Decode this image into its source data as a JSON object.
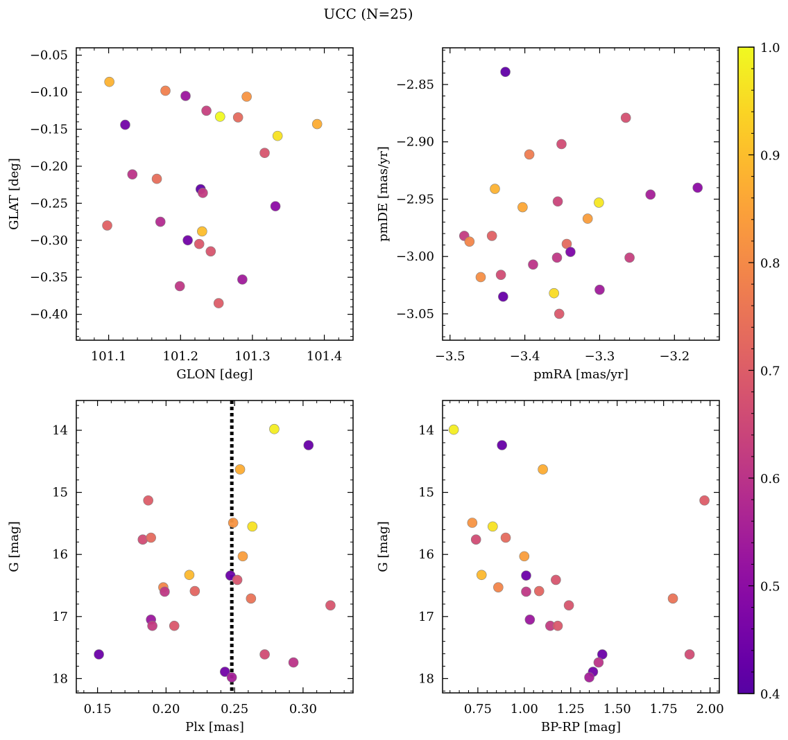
{
  "figure": {
    "suptitle": "UCC (N=25)",
    "colormap": "plasma",
    "colorbar": {
      "min": 0.4,
      "max": 1.0,
      "ticks": [
        0.4,
        0.5,
        0.6,
        0.7,
        0.8,
        0.9,
        1.0
      ],
      "tick_labels": [
        "0.4",
        "0.5",
        "0.6",
        "0.7",
        "0.8",
        "0.9",
        "1.0"
      ]
    }
  },
  "chart_data": [
    {
      "type": "scatter",
      "panel": "top-left",
      "xlabel": "GLON [deg]",
      "ylabel": "GLAT [deg]",
      "xlim": [
        101.055,
        101.44
      ],
      "ylim": [
        -0.435,
        -0.04
      ],
      "y_inverted": false,
      "xticks": [
        101.1,
        101.2,
        101.3,
        101.4
      ],
      "xtick_labels": [
        "101.1",
        "101.2",
        "101.3",
        "101.4"
      ],
      "yticks": [
        -0.05,
        -0.1,
        -0.15,
        -0.2,
        -0.25,
        -0.3,
        -0.35,
        -0.4
      ],
      "ytick_labels": [
        "−0.05",
        "−0.10",
        "−0.15",
        "−0.20",
        "−0.25",
        "−0.30",
        "−0.35",
        "−0.40"
      ],
      "points": [
        {
          "x": 101.101,
          "y": -0.086,
          "c": 0.88
        },
        {
          "x": 101.179,
          "y": -0.098,
          "c": 0.78
        },
        {
          "x": 101.207,
          "y": -0.105,
          "c": 0.53
        },
        {
          "x": 101.292,
          "y": -0.106,
          "c": 0.82
        },
        {
          "x": 101.236,
          "y": -0.125,
          "c": 0.63
        },
        {
          "x": 101.255,
          "y": -0.133,
          "c": 1.0
        },
        {
          "x": 101.28,
          "y": -0.134,
          "c": 0.73
        },
        {
          "x": 101.123,
          "y": -0.144,
          "c": 0.45
        },
        {
          "x": 101.39,
          "y": -0.143,
          "c": 0.87
        },
        {
          "x": 101.335,
          "y": -0.159,
          "c": 0.96
        },
        {
          "x": 101.317,
          "y": -0.182,
          "c": 0.68
        },
        {
          "x": 101.133,
          "y": -0.211,
          "c": 0.6
        },
        {
          "x": 101.167,
          "y": -0.217,
          "c": 0.74
        },
        {
          "x": 101.228,
          "y": -0.231,
          "c": 0.42
        },
        {
          "x": 101.231,
          "y": -0.236,
          "c": 0.62
        },
        {
          "x": 101.332,
          "y": -0.254,
          "c": 0.5
        },
        {
          "x": 101.172,
          "y": -0.275,
          "c": 0.58
        },
        {
          "x": 101.098,
          "y": -0.28,
          "c": 0.71
        },
        {
          "x": 101.23,
          "y": -0.288,
          "c": 0.9
        },
        {
          "x": 101.21,
          "y": -0.3,
          "c": 0.45
        },
        {
          "x": 101.226,
          "y": -0.305,
          "c": 0.69
        },
        {
          "x": 101.242,
          "y": -0.315,
          "c": 0.68
        },
        {
          "x": 101.286,
          "y": -0.353,
          "c": 0.54
        },
        {
          "x": 101.199,
          "y": -0.362,
          "c": 0.61
        },
        {
          "x": 101.253,
          "y": -0.385,
          "c": 0.7
        }
      ]
    },
    {
      "type": "scatter",
      "panel": "top-right",
      "xlabel": "pmRA [mas/yr]",
      "ylabel": "pmDE [mas/yr]",
      "xlim": [
        -3.51,
        -3.14
      ],
      "ylim": [
        -3.073,
        -2.818
      ],
      "y_inverted": false,
      "xticks": [
        -3.5,
        -3.4,
        -3.3,
        -3.2
      ],
      "xtick_labels": [
        "−3.5",
        "−3.4",
        "−3.3",
        "−3.2"
      ],
      "yticks": [
        -2.85,
        -2.9,
        -2.95,
        -3.0,
        -3.05
      ],
      "ytick_labels": [
        "−2.85",
        "−2.90",
        "−2.95",
        "−3.00",
        "−3.05"
      ],
      "points": [
        {
          "x": -3.426,
          "y": -2.839,
          "c": 0.42
        },
        {
          "x": -3.265,
          "y": -2.879,
          "c": 0.67
        },
        {
          "x": -3.351,
          "y": -2.902,
          "c": 0.66
        },
        {
          "x": -3.394,
          "y": -2.911,
          "c": 0.77
        },
        {
          "x": -3.44,
          "y": -2.941,
          "c": 0.88
        },
        {
          "x": -3.169,
          "y": -2.94,
          "c": 0.5
        },
        {
          "x": -3.232,
          "y": -2.946,
          "c": 0.55
        },
        {
          "x": -3.301,
          "y": -2.953,
          "c": 0.97
        },
        {
          "x": -3.356,
          "y": -2.952,
          "c": 0.64
        },
        {
          "x": -3.403,
          "y": -2.957,
          "c": 0.86
        },
        {
          "x": -3.316,
          "y": -2.967,
          "c": 0.84
        },
        {
          "x": -3.481,
          "y": -2.982,
          "c": 0.62
        },
        {
          "x": -3.444,
          "y": -2.982,
          "c": 0.71
        },
        {
          "x": -3.474,
          "y": -2.987,
          "c": 0.79
        },
        {
          "x": -3.344,
          "y": -2.989,
          "c": 0.73
        },
        {
          "x": -3.339,
          "y": -2.996,
          "c": 0.47
        },
        {
          "x": -3.26,
          "y": -3.001,
          "c": 0.63
        },
        {
          "x": -3.357,
          "y": -3.001,
          "c": 0.61
        },
        {
          "x": -3.389,
          "y": -3.007,
          "c": 0.6
        },
        {
          "x": -3.459,
          "y": -3.018,
          "c": 0.81
        },
        {
          "x": -3.432,
          "y": -3.016,
          "c": 0.66
        },
        {
          "x": -3.3,
          "y": -3.029,
          "c": 0.54
        },
        {
          "x": -3.429,
          "y": -3.035,
          "c": 0.43
        },
        {
          "x": -3.361,
          "y": -3.032,
          "c": 0.95
        },
        {
          "x": -3.354,
          "y": -3.05,
          "c": 0.69
        }
      ]
    },
    {
      "type": "scatter",
      "panel": "bottom-left",
      "xlabel": "Plx [mas]",
      "ylabel": "G [mag]",
      "xlim": [
        0.1345,
        0.3365
      ],
      "ylim": [
        18.23,
        13.52
      ],
      "y_inverted": true,
      "xticks": [
        0.15,
        0.2,
        0.25,
        0.3
      ],
      "xtick_labels": [
        "0.15",
        "0.20",
        "0.25",
        "0.30"
      ],
      "yticks": [
        14,
        15,
        16,
        17,
        18
      ],
      "ytick_labels": [
        "14",
        "15",
        "16",
        "17",
        "18"
      ],
      "vline": {
        "x": 0.248,
        "style": "dotted"
      },
      "points": [
        {
          "x": 0.279,
          "y": 13.98,
          "c": 0.98
        },
        {
          "x": 0.304,
          "y": 14.24,
          "c": 0.43
        },
        {
          "x": 0.254,
          "y": 14.63,
          "c": 0.87
        },
        {
          "x": 0.187,
          "y": 15.13,
          "c": 0.7
        },
        {
          "x": 0.249,
          "y": 15.49,
          "c": 0.82
        },
        {
          "x": 0.263,
          "y": 15.55,
          "c": 0.96
        },
        {
          "x": 0.183,
          "y": 15.76,
          "c": 0.66
        },
        {
          "x": 0.189,
          "y": 15.73,
          "c": 0.73
        },
        {
          "x": 0.256,
          "y": 16.03,
          "c": 0.84
        },
        {
          "x": 0.217,
          "y": 16.33,
          "c": 0.89
        },
        {
          "x": 0.247,
          "y": 16.34,
          "c": 0.44
        },
        {
          "x": 0.252,
          "y": 16.41,
          "c": 0.68
        },
        {
          "x": 0.198,
          "y": 16.53,
          "c": 0.79
        },
        {
          "x": 0.199,
          "y": 16.6,
          "c": 0.61
        },
        {
          "x": 0.221,
          "y": 16.59,
          "c": 0.72
        },
        {
          "x": 0.262,
          "y": 16.71,
          "c": 0.75
        },
        {
          "x": 0.32,
          "y": 16.82,
          "c": 0.68
        },
        {
          "x": 0.189,
          "y": 17.05,
          "c": 0.53
        },
        {
          "x": 0.19,
          "y": 17.15,
          "c": 0.62
        },
        {
          "x": 0.206,
          "y": 17.15,
          "c": 0.69
        },
        {
          "x": 0.151,
          "y": 17.61,
          "c": 0.44
        },
        {
          "x": 0.272,
          "y": 17.61,
          "c": 0.66
        },
        {
          "x": 0.293,
          "y": 17.74,
          "c": 0.6
        },
        {
          "x": 0.243,
          "y": 17.89,
          "c": 0.45
        },
        {
          "x": 0.248,
          "y": 17.98,
          "c": 0.55
        }
      ]
    },
    {
      "type": "scatter",
      "panel": "bottom-right",
      "xlabel": "BP-RP [mag]",
      "ylabel": "G [mag]",
      "xlim": [
        0.56,
        2.05
      ],
      "ylim": [
        18.23,
        13.52
      ],
      "y_inverted": true,
      "xticks": [
        0.75,
        1.0,
        1.25,
        1.5,
        1.75,
        2.0
      ],
      "xtick_labels": [
        "0.75",
        "1.00",
        "1.25",
        "1.50",
        "1.75",
        "2.00"
      ],
      "yticks": [
        14,
        15,
        16,
        17,
        18
      ],
      "ytick_labels": [
        "14",
        "15",
        "16",
        "17",
        "18"
      ],
      "points": [
        {
          "x": 0.62,
          "y": 13.99,
          "c": 0.98
        },
        {
          "x": 0.88,
          "y": 14.24,
          "c": 0.43
        },
        {
          "x": 1.1,
          "y": 14.63,
          "c": 0.87
        },
        {
          "x": 1.97,
          "y": 15.13,
          "c": 0.7
        },
        {
          "x": 0.72,
          "y": 15.49,
          "c": 0.82
        },
        {
          "x": 0.83,
          "y": 15.55,
          "c": 0.96
        },
        {
          "x": 0.74,
          "y": 15.76,
          "c": 0.66
        },
        {
          "x": 0.9,
          "y": 15.73,
          "c": 0.73
        },
        {
          "x": 1.0,
          "y": 16.03,
          "c": 0.84
        },
        {
          "x": 0.77,
          "y": 16.33,
          "c": 0.89
        },
        {
          "x": 1.01,
          "y": 16.34,
          "c": 0.44
        },
        {
          "x": 1.17,
          "y": 16.41,
          "c": 0.68
        },
        {
          "x": 0.86,
          "y": 16.53,
          "c": 0.79
        },
        {
          "x": 1.01,
          "y": 16.6,
          "c": 0.61
        },
        {
          "x": 1.08,
          "y": 16.59,
          "c": 0.72
        },
        {
          "x": 1.8,
          "y": 16.71,
          "c": 0.75
        },
        {
          "x": 1.24,
          "y": 16.82,
          "c": 0.68
        },
        {
          "x": 1.03,
          "y": 17.05,
          "c": 0.53
        },
        {
          "x": 1.14,
          "y": 17.15,
          "c": 0.62
        },
        {
          "x": 1.18,
          "y": 17.15,
          "c": 0.69
        },
        {
          "x": 1.42,
          "y": 17.61,
          "c": 0.44
        },
        {
          "x": 1.89,
          "y": 17.61,
          "c": 0.66
        },
        {
          "x": 1.4,
          "y": 17.74,
          "c": 0.6
        },
        {
          "x": 1.37,
          "y": 17.89,
          "c": 0.45
        },
        {
          "x": 1.35,
          "y": 17.98,
          "c": 0.55
        }
      ]
    }
  ]
}
